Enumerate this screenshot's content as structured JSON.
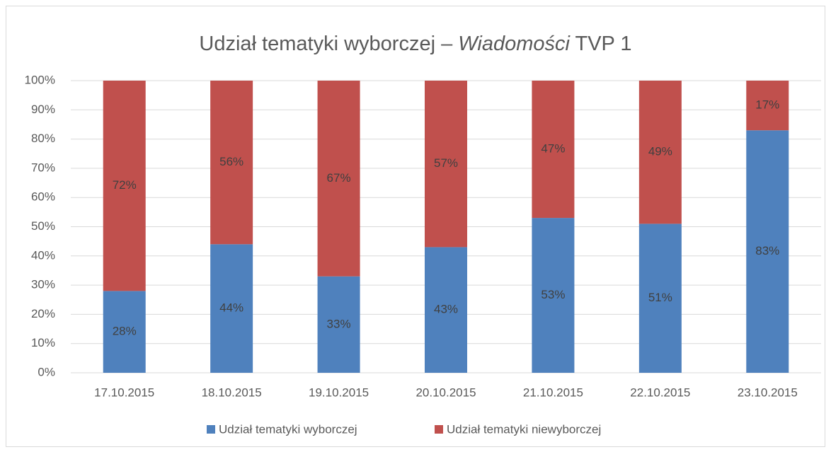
{
  "chart_data": {
    "type": "stacked_bar",
    "title": [
      "Udział tematyki wyborczej – ",
      "Wiadomości",
      " TVP 1"
    ],
    "categories": [
      "17.10.2015",
      "18.10.2015",
      "19.10.2015",
      "20.10.2015",
      "21.10.2015",
      "22.10.2015",
      "23.10.2015"
    ],
    "series": [
      {
        "name": "Udział tematyki wyborczej",
        "color": "#4f81bd",
        "values": [
          28,
          44,
          33,
          43,
          53,
          51,
          83
        ],
        "value_labels": [
          "28%",
          "44%",
          "33%",
          "43%",
          "53%",
          "51%",
          "83%"
        ]
      },
      {
        "name": "Udział tematyki niewyborczej",
        "color": "#c0504d",
        "values": [
          72,
          56,
          67,
          57,
          47,
          49,
          17
        ],
        "value_labels": [
          "72%",
          "56%",
          "67%",
          "57%",
          "47%",
          "49%",
          "17%"
        ]
      }
    ],
    "ylim": [
      0,
      100
    ],
    "yticks": [
      {
        "value": 0,
        "label": "0%"
      },
      {
        "value": 10,
        "label": "10%"
      },
      {
        "value": 20,
        "label": "20%"
      },
      {
        "value": 30,
        "label": "30%"
      },
      {
        "value": 40,
        "label": "40%"
      },
      {
        "value": 50,
        "label": "50%"
      },
      {
        "value": 60,
        "label": "60%"
      },
      {
        "value": 70,
        "label": "70%"
      },
      {
        "value": 80,
        "label": "80%"
      },
      {
        "value": 90,
        "label": "90%"
      },
      {
        "value": 100,
        "label": "100%"
      }
    ],
    "grid": true,
    "legend": "bottom"
  }
}
